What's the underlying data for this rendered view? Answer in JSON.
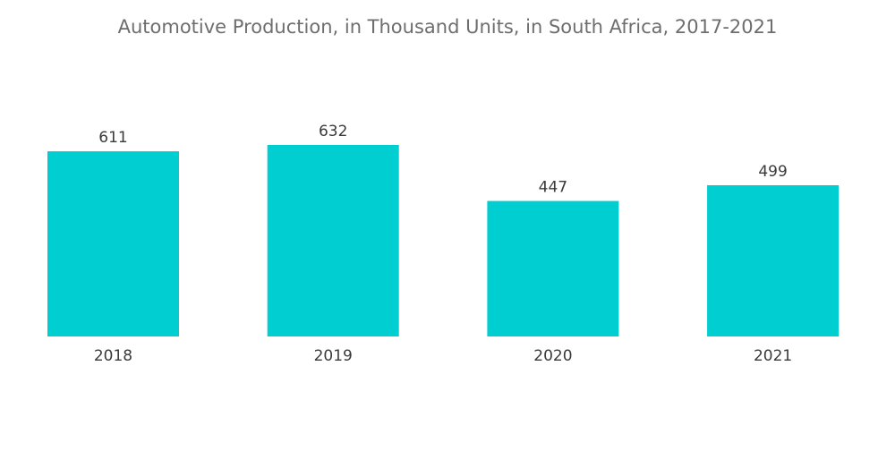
{
  "chart_data": {
    "type": "bar",
    "title": "Automotive Production, in Thousand Units, in South Africa, 2017-2021",
    "xlabel": "",
    "ylabel": "",
    "categories": [
      "2018",
      "2019",
      "2020",
      "2021"
    ],
    "values": [
      611,
      632,
      447,
      499
    ],
    "ylim": [
      0,
      632
    ],
    "grid": false,
    "legend": "none",
    "bar_color": "#00ced1"
  }
}
